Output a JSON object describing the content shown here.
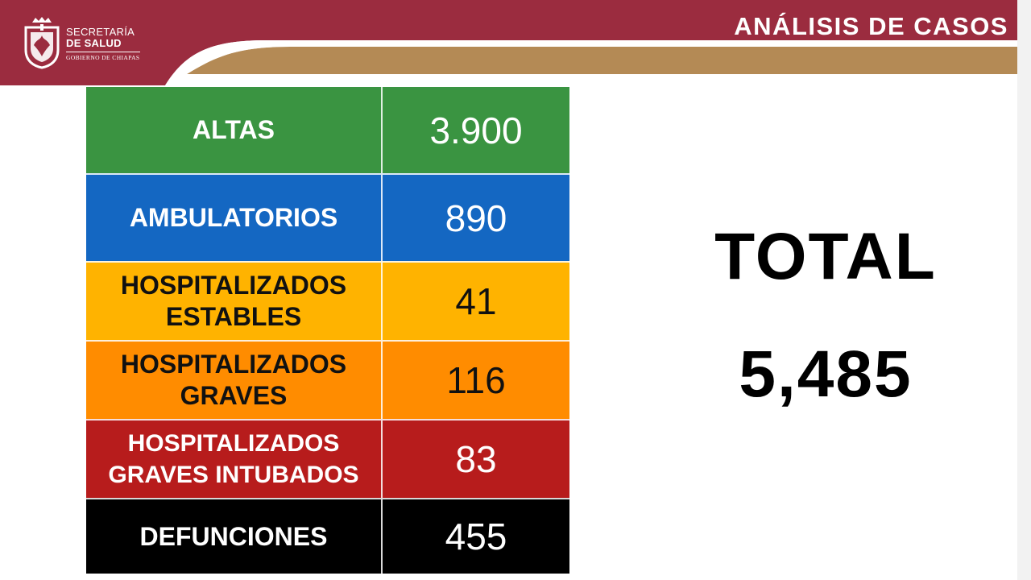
{
  "header": {
    "department_line1": "SECRETARÍA",
    "department_line2": "DE SALUD",
    "government": "GOBIERNO DE CHIAPAS",
    "title": "ANÁLISIS DE CASOS"
  },
  "colors": {
    "header_maroon": "#9b2c3f",
    "header_gold": "#b48a55"
  },
  "cases": [
    {
      "label": "ALTAS",
      "value": "3.900",
      "bg": "#3a9441",
      "text": "#ffffff"
    },
    {
      "label": "AMBULATORIOS",
      "value": "890",
      "bg": "#1467c2",
      "text": "#ffffff"
    },
    {
      "label": "HOSPITALIZADOS ESTABLES",
      "value": "41",
      "bg": "#ffb300",
      "text": "#111111"
    },
    {
      "label": "HOSPITALIZADOS GRAVES",
      "value": "116",
      "bg": "#ff8c00",
      "text": "#111111"
    },
    {
      "label": "HOSPITALIZADOS GRAVES INTUBADOS",
      "value": "83",
      "bg": "#b71c1c",
      "text": "#ffffff"
    },
    {
      "label": "DEFUNCIONES",
      "value": "455",
      "bg": "#000000",
      "text": "#ffffff"
    }
  ],
  "total": {
    "label": "TOTAL",
    "value": "5,485"
  }
}
